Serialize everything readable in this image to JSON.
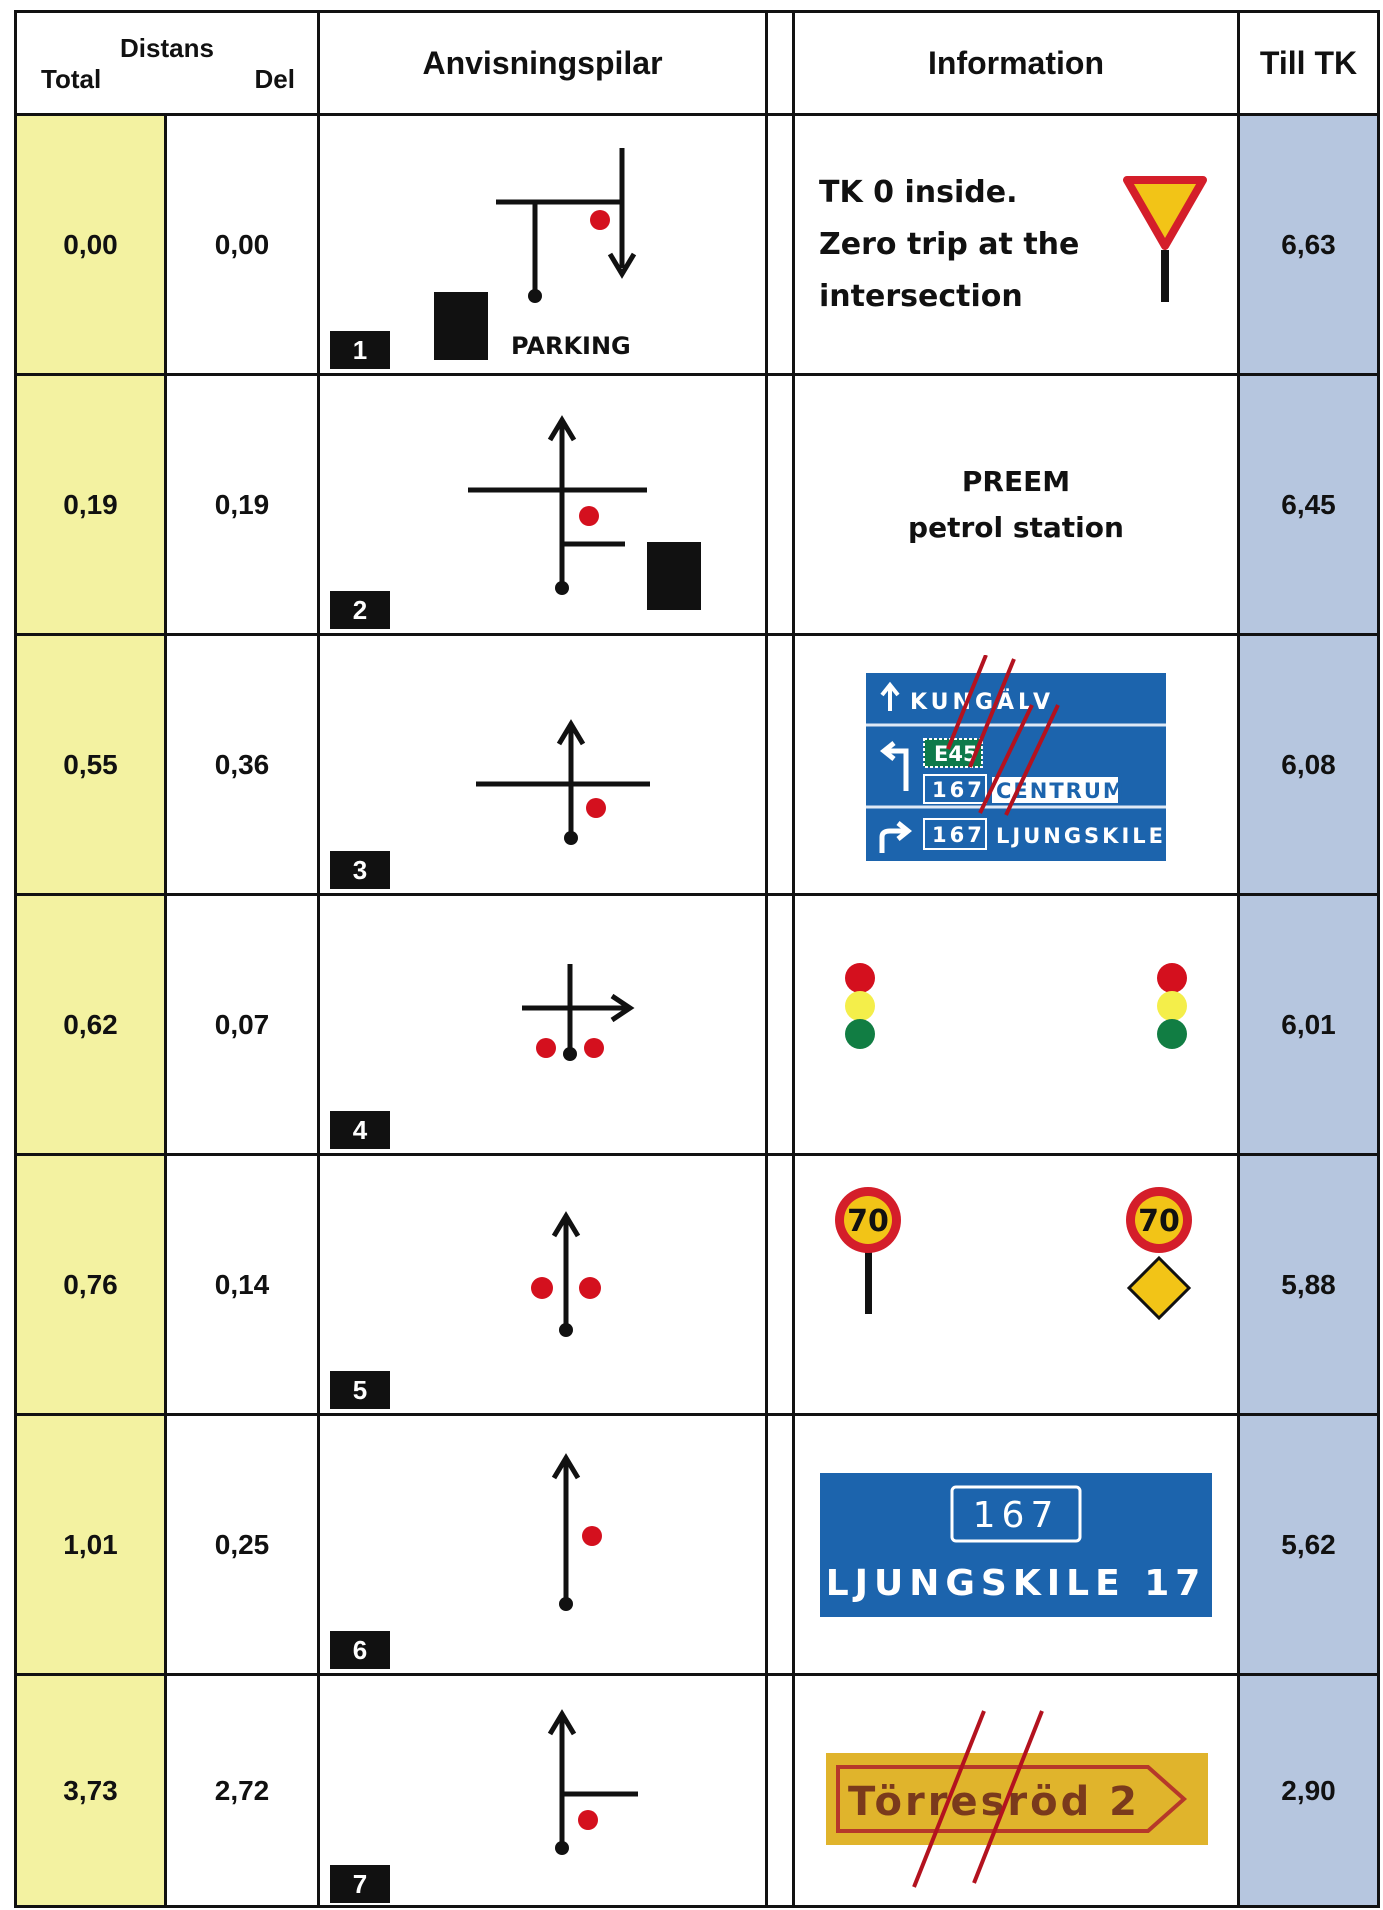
{
  "header": {
    "distans": "Distans",
    "total": "Total",
    "del": "Del",
    "anvisningspilar": "Anvisningspilar",
    "information": "Information",
    "till_tk": "Till TK"
  },
  "rows": [
    {
      "total": "0,00",
      "del": "0,00",
      "num": "1",
      "till": "6,63",
      "arrow_label": "PARKING",
      "info_lines": [
        "TK 0 inside.",
        "Zero trip at the",
        "intersection"
      ]
    },
    {
      "total": "0,19",
      "del": "0,19",
      "num": "2",
      "till": "6,45",
      "info_lines": [
        "PREEM",
        "petrol station"
      ]
    },
    {
      "total": "0,55",
      "del": "0,36",
      "num": "3",
      "till": "6,08",
      "sign": {
        "kungalv": "KUNGÄLV",
        "e45": "E45",
        "r167": "167",
        "centrum": "CENTRUM",
        "r167b": "167",
        "ljungskile": "LJUNGSKILE"
      }
    },
    {
      "total": "0,62",
      "del": "0,07",
      "num": "4",
      "till": "6,01"
    },
    {
      "total": "0,76",
      "del": "0,14",
      "num": "5",
      "till": "5,88",
      "speed": "70"
    },
    {
      "total": "1,01",
      "del": "0,25",
      "num": "6",
      "till": "5,62",
      "sign": {
        "route": "167",
        "text": "LJUNGSKILE 17"
      }
    },
    {
      "total": "3,73",
      "del": "2,72",
      "num": "7",
      "till": "2,90",
      "sign": {
        "text": "Törresröd 2"
      }
    }
  ],
  "colors": {
    "total_bg": "#f3f2a1",
    "till_bg": "#b6c6df",
    "sign_blue": "#1c64ad",
    "sign_green": "#0e7a4b",
    "red_dot": "#d4101e",
    "yield_yellow": "#f2c417",
    "yield_red": "#d41e2a"
  }
}
